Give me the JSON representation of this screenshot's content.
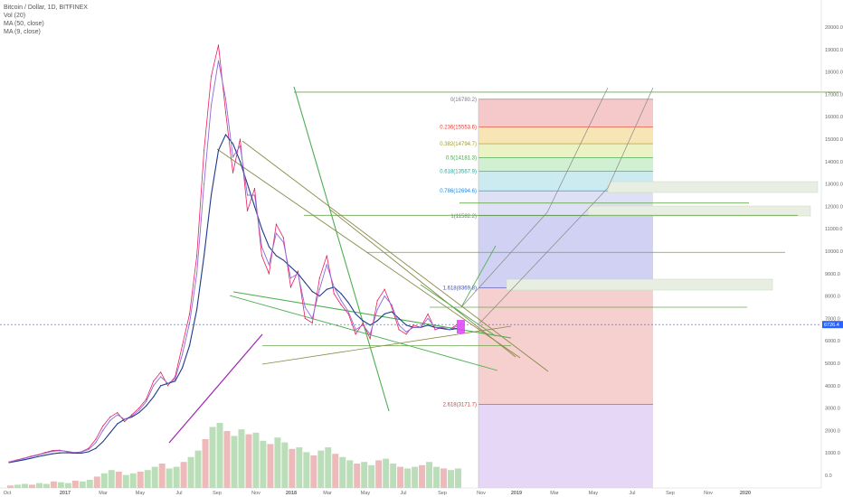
{
  "legend": {
    "symbol": "Bitcoin / Dollar, 1D, BITFINEX",
    "indicators": [
      "Vol (20)",
      "MA (50, close)",
      "MA (9, close)"
    ]
  },
  "chart_data": {
    "type": "line",
    "title": "Bitcoin / Dollar, 1D, BITFINEX",
    "xlabel": "",
    "ylabel": "",
    "ylim": [
      -500,
      20700
    ],
    "y_ticks": [
      "0.0",
      "1000.0",
      "2000.0",
      "3000.0",
      "4000.0",
      "5000.0",
      "6000.0",
      "7000.0",
      "8000.0",
      "9000.0",
      "10000.0",
      "11000.0",
      "12000.0",
      "13000.0",
      "14000.0",
      "15000.0",
      "16000.0",
      "17000.0",
      "18000.0",
      "19000.0",
      "20000.0"
    ],
    "y_tick_values": [
      0,
      1000,
      2000,
      3000,
      4000,
      5000,
      6000,
      7000,
      8000,
      9000,
      10000,
      11000,
      12000,
      13000,
      14000,
      15000,
      16000,
      17000,
      18000,
      19000,
      20000
    ],
    "x_ticks": [
      "Oct",
      "2017",
      "Mar",
      "May",
      "Jul",
      "Sep",
      "Nov",
      "2018",
      "Mar",
      "May",
      "Jul",
      "Sep",
      "Nov",
      "2019",
      "Mar",
      "May",
      "Jul",
      "Sep",
      "Nov",
      "2020"
    ],
    "last_price_label": "6726.4",
    "last_price": 6726.4,
    "series": [
      {
        "values": [
          600,
          680,
          760,
          850,
          920,
          1020,
          1100,
          1120,
          1060,
          1000,
          1050,
          1200,
          1600,
          2200,
          2600,
          2800,
          2400,
          2700,
          3000,
          3400,
          4200,
          4600,
          4000,
          4400,
          5800,
          7200,
          9800,
          14500,
          17800,
          19200,
          16200,
          13500,
          15000,
          11800,
          12800,
          9800,
          9000,
          11200,
          10600,
          8400,
          9100,
          7000,
          6800,
          8800,
          9800,
          8100,
          7600,
          7200,
          6300,
          6800,
          6100,
          7800,
          8300,
          7500,
          6500,
          6300,
          6700,
          6600,
          7200,
          6500,
          6600,
          6500,
          6726
        ]
      },
      {
        "name": "MA (50, close)",
        "values": [
          570,
          630,
          690,
          760,
          830,
          900,
          960,
          1000,
          1010,
          990,
          990,
          1050,
          1200,
          1500,
          1900,
          2300,
          2500,
          2600,
          2800,
          3100,
          3500,
          4000,
          4100,
          4200,
          4800,
          5800,
          7400,
          9800,
          12500,
          14500,
          15200,
          14800,
          14000,
          13000,
          12000,
          11000,
          10200,
          9800,
          9600,
          9300,
          9000,
          8600,
          8200,
          8000,
          8300,
          8400,
          8100,
          7700,
          7200,
          6900,
          6700,
          6900,
          7200,
          7300,
          7000,
          6700,
          6600,
          6600,
          6700,
          6600,
          6550,
          6500,
          6550
        ]
      },
      {
        "name": "MA (9, close)",
        "values": [
          590,
          660,
          740,
          830,
          900,
          990,
          1070,
          1100,
          1070,
          1020,
          1040,
          1150,
          1450,
          2000,
          2450,
          2700,
          2500,
          2650,
          2900,
          3300,
          4000,
          4400,
          4100,
          4300,
          5400,
          6800,
          9000,
          13000,
          16500,
          18500,
          16800,
          14200,
          14700,
          12500,
          12500,
          10200,
          9400,
          10800,
          10400,
          8800,
          9000,
          7500,
          7000,
          8300,
          9400,
          8400,
          7800,
          7300,
          6500,
          6700,
          6300,
          7400,
          8000,
          7600,
          6700,
          6400,
          6600,
          6600,
          7000,
          6600,
          6600,
          6500,
          6650
        ]
      }
    ],
    "volume": [
      3,
      4,
      5,
      4,
      6,
      5,
      8,
      7,
      6,
      9,
      8,
      10,
      14,
      18,
      22,
      20,
      16,
      18,
      20,
      22,
      26,
      30,
      24,
      26,
      32,
      38,
      46,
      60,
      75,
      80,
      70,
      64,
      72,
      66,
      68,
      58,
      54,
      62,
      56,
      48,
      50,
      44,
      40,
      46,
      50,
      42,
      38,
      34,
      30,
      32,
      28,
      34,
      36,
      30,
      26,
      24,
      26,
      28,
      32,
      26,
      24,
      22,
      24
    ],
    "fibonacci": {
      "levels": [
        {
          "ratio": "0",
          "price": "16780.2",
          "value": 16780.2,
          "color": "#787b86",
          "fill": "#f3c0c0"
        },
        {
          "ratio": "0.236",
          "price": "15553.6",
          "value": 15553.6,
          "color": "#e53935",
          "fill": "#f6e1a8"
        },
        {
          "ratio": "0.382",
          "price": "14794.7",
          "value": 14794.7,
          "color": "#9e9d24",
          "fill": "#e8f0b8"
        },
        {
          "ratio": "0.5",
          "price": "14181.3",
          "value": 14181.3,
          "color": "#43a047",
          "fill": "#c9ecc9"
        },
        {
          "ratio": "0.618",
          "price": "13567.9",
          "value": 13567.9,
          "color": "#26a69a",
          "fill": "#c3e8ef"
        },
        {
          "ratio": "0.786",
          "price": "12694.6",
          "value": 12694.6,
          "color": "#1e88e5",
          "fill": "#d8dbf3"
        },
        {
          "ratio": "1",
          "price": "11582.2",
          "value": 11582.2,
          "color": "#787b86",
          "fill": "#c9c9f2"
        },
        {
          "ratio": "1.618",
          "price": "8369.8",
          "value": 8369.8,
          "color": "#3f51b5",
          "fill": "#f4c7c7"
        },
        {
          "ratio": "2.618",
          "price": "3171.7",
          "value": 3171.7,
          "color": "#e53935",
          "fill": "#e2d0f6"
        }
      ]
    },
    "horizontal_levels": [
      17100,
      12150,
      11600,
      9950,
      7500,
      5780
    ],
    "grid": false,
    "legend_position": "top-left"
  }
}
